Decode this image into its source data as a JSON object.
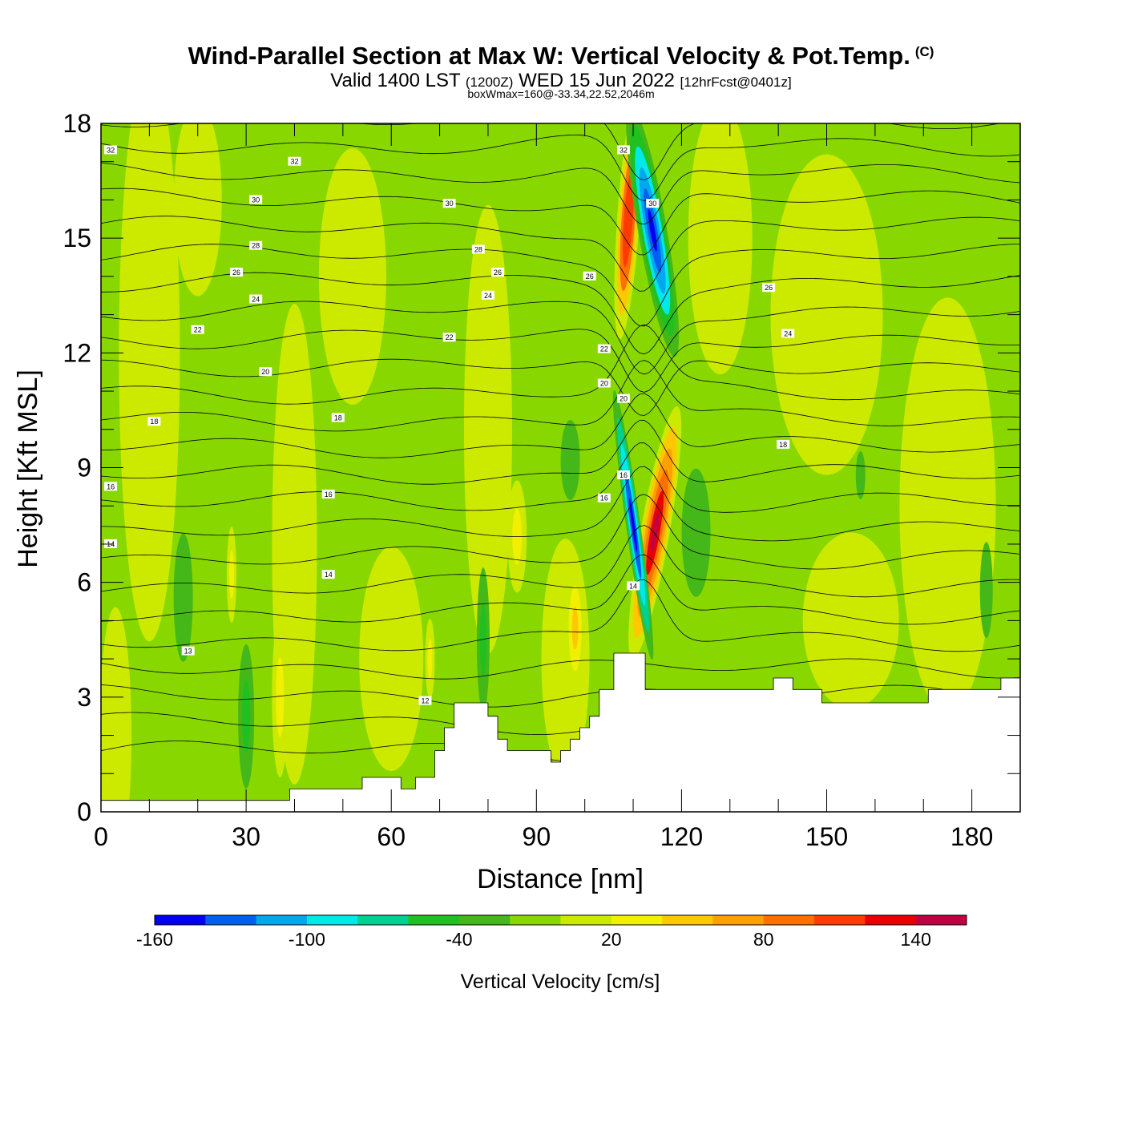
{
  "title": "Wind-Parallel Section at Max W: Vertical Velocity & Pot.Temp.",
  "title_mark": "(C)",
  "subtitle_main": "Valid 1400 LST",
  "subtitle_utc": "(1200Z)",
  "subtitle_date": "WED 15 Jun 2022",
  "subtitle_run": "[12hrFcst@0401z]",
  "subtitle_box": "boxWmax=160@-33.34,22.52,2046m",
  "chart_data": {
    "type": "heatmap",
    "xlabel": "Distance [nm]",
    "ylabel": "Height [Kft MSL]",
    "xlim": [
      0,
      190
    ],
    "ylim": [
      0,
      18
    ],
    "xticks": [
      0,
      30,
      60,
      90,
      120,
      150,
      180
    ],
    "yticks": [
      0,
      3,
      6,
      9,
      12,
      15,
      18
    ],
    "grid": false,
    "colorbar": {
      "label": "Vertical Velocity [cm/s]",
      "tick_labels": [
        "-160",
        "-100",
        "-40",
        "20",
        "80",
        "140"
      ],
      "levels": [
        -160,
        -140,
        -120,
        -100,
        -80,
        -60,
        -40,
        -20,
        0,
        20,
        40,
        60,
        80,
        100,
        120,
        140,
        160
      ],
      "colors": [
        "#0000ee",
        "#0060f0",
        "#00a8f0",
        "#00e8e8",
        "#00d090",
        "#20c020",
        "#44b818",
        "#88d800",
        "#ccea00",
        "#f0f000",
        "#ffc800",
        "#ffa000",
        "#ff7000",
        "#ff3c00",
        "#e80000",
        "#c00040"
      ]
    },
    "background_value": -10,
    "updraft_core": {
      "x": 114.5,
      "y_range": [
        4.3,
        10.3
      ],
      "max_cm_s": 160
    },
    "downdraft_core": {
      "x": 110,
      "y_range": [
        4.2,
        10.8
      ],
      "min_cm_s": -160
    },
    "upper_downdraft": {
      "x": 114,
      "y_range": [
        12.4,
        18
      ],
      "min_cm_s": -150
    },
    "upper_updraft": {
      "x": 109,
      "y_range": [
        13,
        18
      ],
      "max_cm_s": 120
    },
    "isentrope_labels": [
      "12",
      "13",
      "14",
      "16",
      "18",
      "20",
      "22",
      "24",
      "26",
      "28",
      "30",
      "32"
    ],
    "terrain": [
      {
        "x": 0,
        "y": 0.3
      },
      {
        "x": 39,
        "y": 0.3
      },
      {
        "x": 39,
        "y": 0.6
      },
      {
        "x": 54,
        "y": 0.6
      },
      {
        "x": 54,
        "y": 0.9
      },
      {
        "x": 62,
        "y": 0.9
      },
      {
        "x": 62,
        "y": 0.6
      },
      {
        "x": 65,
        "y": 0.6
      },
      {
        "x": 65,
        "y": 0.9
      },
      {
        "x": 69,
        "y": 0.9
      },
      {
        "x": 69,
        "y": 1.6
      },
      {
        "x": 71,
        "y": 1.6
      },
      {
        "x": 71,
        "y": 2.2
      },
      {
        "x": 73,
        "y": 2.2
      },
      {
        "x": 73,
        "y": 2.85
      },
      {
        "x": 80,
        "y": 2.85
      },
      {
        "x": 80,
        "y": 2.5
      },
      {
        "x": 82,
        "y": 2.5
      },
      {
        "x": 82,
        "y": 1.9
      },
      {
        "x": 84,
        "y": 1.9
      },
      {
        "x": 84,
        "y": 1.6
      },
      {
        "x": 93,
        "y": 1.6
      },
      {
        "x": 93,
        "y": 1.3
      },
      {
        "x": 95,
        "y": 1.3
      },
      {
        "x": 95,
        "y": 1.6
      },
      {
        "x": 97,
        "y": 1.6
      },
      {
        "x": 97,
        "y": 1.9
      },
      {
        "x": 99,
        "y": 1.9
      },
      {
        "x": 99,
        "y": 2.2
      },
      {
        "x": 101,
        "y": 2.2
      },
      {
        "x": 101,
        "y": 2.5
      },
      {
        "x": 103,
        "y": 2.5
      },
      {
        "x": 103,
        "y": 3.2
      },
      {
        "x": 106,
        "y": 3.2
      },
      {
        "x": 106,
        "y": 4.15
      },
      {
        "x": 112.5,
        "y": 4.15
      },
      {
        "x": 112.5,
        "y": 3.2
      },
      {
        "x": 139,
        "y": 3.2
      },
      {
        "x": 139,
        "y": 3.5
      },
      {
        "x": 143,
        "y": 3.5
      },
      {
        "x": 143,
        "y": 3.2
      },
      {
        "x": 149,
        "y": 3.2
      },
      {
        "x": 149,
        "y": 2.85
      },
      {
        "x": 171,
        "y": 2.85
      },
      {
        "x": 171,
        "y": 3.2
      },
      {
        "x": 186,
        "y": 3.2
      },
      {
        "x": 186,
        "y": 3.5
      },
      {
        "x": 190,
        "y": 3.5
      }
    ]
  }
}
